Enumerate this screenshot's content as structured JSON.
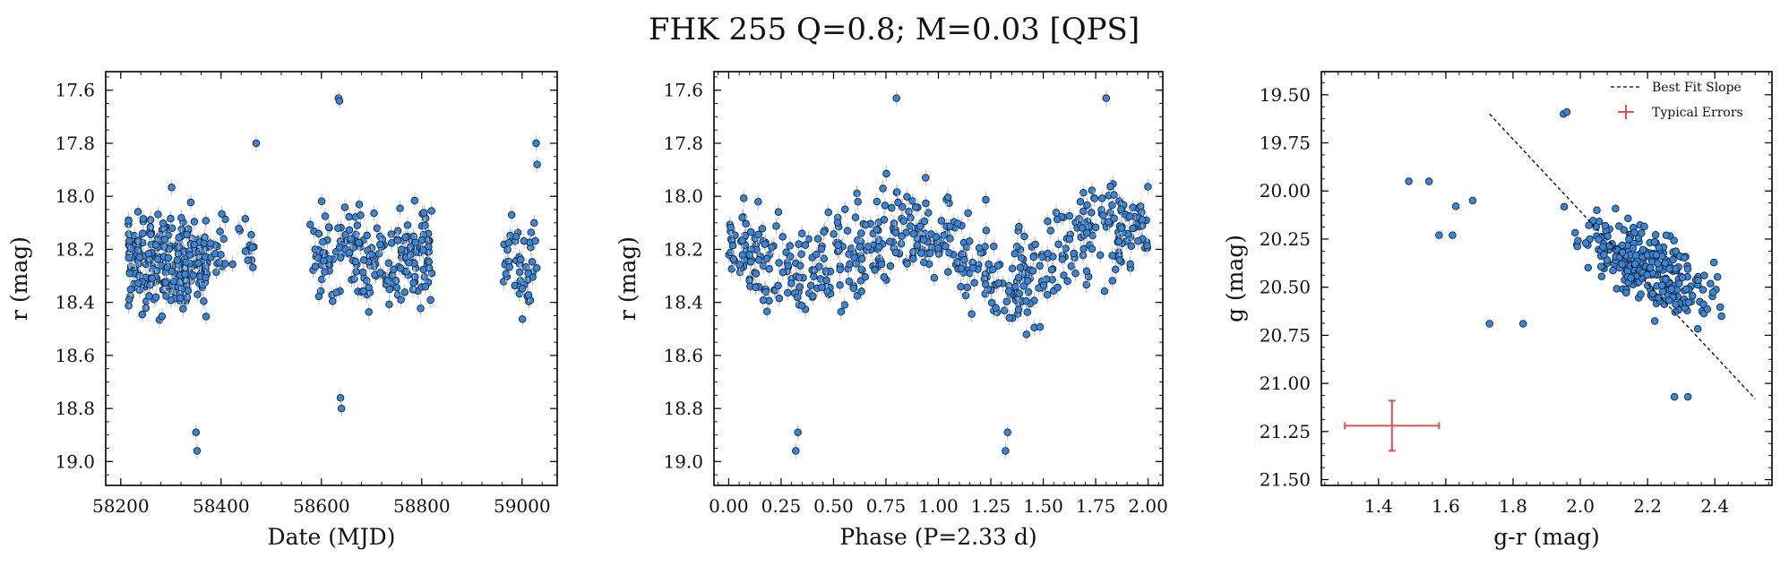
{
  "figure": {
    "title": "FHK 255  Q=0.8; M=0.03 [QPS]"
  },
  "colors": {
    "point_fill": "#3a86d6",
    "point_edge": "#12263f",
    "errorbar": "#bdbdbd",
    "typical_error": "#d9534f"
  },
  "chart_data": [
    {
      "type": "scatter",
      "name": "light-curve",
      "xlabel": "Date (MJD)",
      "ylabel": "r (mag)",
      "xlim": [
        58170,
        59070
      ],
      "ylim": [
        19.09,
        17.53
      ],
      "y_inverted": true,
      "xticks": [
        58200,
        58400,
        58600,
        58800,
        59000
      ],
      "yticks": [
        17.6,
        17.8,
        18.0,
        18.2,
        18.4,
        18.6,
        18.8,
        19.0
      ],
      "ytick_labels": [
        "17.6",
        "17.8",
        "18.0",
        "18.2",
        "18.4",
        "18.6",
        "18.8",
        "19.0"
      ],
      "clusters": [
        {
          "x_range": [
            58215,
            58375
          ],
          "y_center": 18.25,
          "y_spread": 0.17,
          "n": 260
        },
        {
          "x_range": [
            58375,
            58475
          ],
          "y_center": 18.2,
          "y_spread": 0.13,
          "n": 30
        },
        {
          "x_range": [
            58575,
            58820
          ],
          "y_center": 18.22,
          "y_spread": 0.17,
          "n": 200
        },
        {
          "x_range": [
            58960,
            59030
          ],
          "y_center": 18.25,
          "y_spread": 0.17,
          "n": 45
        }
      ],
      "outliers": [
        {
          "x": 58350,
          "y": 18.89
        },
        {
          "x": 58352,
          "y": 18.96
        },
        {
          "x": 58634,
          "y": 17.63
        },
        {
          "x": 58636,
          "y": 17.64
        },
        {
          "x": 58638,
          "y": 18.76
        },
        {
          "x": 58640,
          "y": 18.8
        },
        {
          "x": 59028,
          "y": 17.8
        },
        {
          "x": 59030,
          "y": 17.88
        },
        {
          "x": 58470,
          "y": 17.8
        }
      ]
    },
    {
      "type": "scatter",
      "name": "phase-folded",
      "xlabel": "Phase (P=2.33 d)",
      "ylabel": "r (mag)",
      "xlim": [
        -0.07,
        2.07
      ],
      "ylim": [
        19.09,
        17.53
      ],
      "y_inverted": true,
      "xticks": [
        0.0,
        0.25,
        0.5,
        0.75,
        1.0,
        1.25,
        1.5,
        1.75,
        2.0
      ],
      "xtick_labels": [
        "0.00",
        "0.25",
        "0.50",
        "0.75",
        "1.00",
        "1.25",
        "1.50",
        "1.75",
        "2.00"
      ],
      "yticks": [
        17.6,
        17.8,
        18.0,
        18.2,
        18.4,
        18.6,
        18.8,
        19.0
      ],
      "ytick_labels": [
        "17.6",
        "17.8",
        "18.0",
        "18.2",
        "18.4",
        "18.6",
        "18.8",
        "19.0"
      ],
      "period_days": 2.33,
      "n_points": 560,
      "mean_mag": 18.22,
      "amplitude": 0.1,
      "scatter": 0.16,
      "outliers": [
        {
          "x": 0.33,
          "y": 18.89
        },
        {
          "x": 0.32,
          "y": 18.96
        },
        {
          "x": 1.33,
          "y": 18.89
        },
        {
          "x": 1.32,
          "y": 18.96
        },
        {
          "x": 0.8,
          "y": 17.63
        },
        {
          "x": 1.8,
          "y": 17.63
        }
      ]
    },
    {
      "type": "scatter",
      "name": "color-magnitude",
      "xlabel": "g-r (mag)",
      "ylabel": "g (mag)",
      "xlim": [
        1.23,
        2.57
      ],
      "ylim": [
        21.53,
        19.38
      ],
      "y_inverted": true,
      "xticks": [
        1.4,
        1.6,
        1.8,
        2.0,
        2.2,
        2.4
      ],
      "xtick_labels": [
        "1.4",
        "1.6",
        "1.8",
        "2.0",
        "2.2",
        "2.4"
      ],
      "yticks": [
        19.5,
        19.75,
        20.0,
        20.25,
        20.5,
        20.75,
        21.0,
        21.25,
        21.5
      ],
      "ytick_labels": [
        "19.50",
        "19.75",
        "20.00",
        "20.25",
        "20.50",
        "20.75",
        "21.00",
        "21.25",
        "21.50"
      ],
      "n_points": 270,
      "main_cloud": {
        "x_center": 2.2,
        "x_spread": 0.17,
        "y_center": 20.4,
        "y_spread": 0.25,
        "slope": 1.55
      },
      "isolated_points": [
        {
          "x": 1.49,
          "y": 19.95
        },
        {
          "x": 1.55,
          "y": 19.95
        },
        {
          "x": 1.58,
          "y": 20.23
        },
        {
          "x": 1.62,
          "y": 20.23
        },
        {
          "x": 1.63,
          "y": 20.08
        },
        {
          "x": 1.68,
          "y": 20.05
        },
        {
          "x": 1.73,
          "y": 20.69
        },
        {
          "x": 1.83,
          "y": 20.69
        },
        {
          "x": 1.95,
          "y": 19.6
        },
        {
          "x": 1.96,
          "y": 19.59
        },
        {
          "x": 2.28,
          "y": 21.07
        },
        {
          "x": 2.32,
          "y": 21.07
        }
      ],
      "best_fit_line": {
        "x": [
          1.73,
          2.52
        ],
        "y": [
          19.6,
          21.08
        ]
      },
      "typical_error": {
        "x": 1.44,
        "y": 21.22,
        "xerr": 0.14,
        "yerr": 0.13
      },
      "legend": {
        "location": "upper-right",
        "entries": [
          "Best Fit Slope",
          "Typical Errors"
        ]
      }
    }
  ]
}
